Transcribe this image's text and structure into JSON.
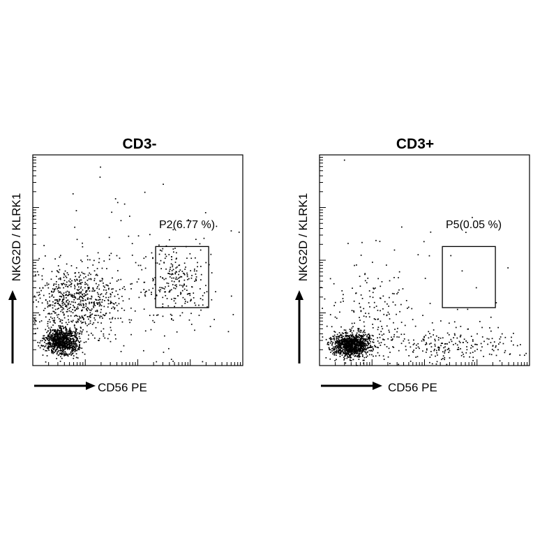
{
  "chart_data": [
    {
      "type": "scatter",
      "title": "CD3-",
      "xlabel": "CD56 PE",
      "ylabel": "NKG2D / KLRK1",
      "axis_scale": "log",
      "xlim": [
        0,
        4
      ],
      "ylim": [
        0,
        4
      ],
      "gate": {
        "label": "P2(6.77 %)",
        "x_range": [
          2.34,
          3.35
        ],
        "y_range": [
          1.1,
          2.26
        ]
      },
      "colors": {
        "points": "#000000",
        "axes": "#000000",
        "gate": "#000000"
      },
      "populations": [
        {
          "name": "",
          "x": 0.55,
          "y": 0.47,
          "sx": 0.16,
          "sy": 0.13,
          "n": 900
        },
        {
          "name": "",
          "x": 0.82,
          "y": 1.28,
          "sx": 0.42,
          "sy": 0.35,
          "n": 650
        },
        {
          "name": "",
          "x": 2.75,
          "y": 1.65,
          "sx": 0.32,
          "sy": 0.38,
          "n": 220
        },
        {
          "name": "",
          "x": 1.9,
          "y": 1.5,
          "sx": 0.9,
          "sy": 0.9,
          "n": 140
        }
      ]
    },
    {
      "type": "scatter",
      "title": "CD3+",
      "xlabel": "CD56 PE",
      "ylabel": "NKG2D / KLRK1",
      "axis_scale": "log",
      "xlim": [
        0,
        4
      ],
      "ylim": [
        0,
        4
      ],
      "gate": {
        "label": "P5(0.05 %)",
        "x_range": [
          2.34,
          3.35
        ],
        "y_range": [
          1.1,
          2.26
        ]
      },
      "colors": {
        "points": "#000000",
        "axes": "#000000",
        "gate": "#000000"
      },
      "populations": [
        {
          "name": "",
          "x": 0.6,
          "y": 0.4,
          "sx": 0.18,
          "sy": 0.11,
          "n": 1100
        },
        {
          "name": "",
          "x": 0.95,
          "y": 0.8,
          "sx": 0.45,
          "sy": 0.55,
          "n": 200
        },
        {
          "name": "",
          "x": 2.6,
          "y": 0.42,
          "sx": 0.75,
          "sy": 0.17,
          "n": 230
        },
        {
          "name": "",
          "x": 2.2,
          "y": 1.8,
          "sx": 1.0,
          "sy": 1.0,
          "n": 25
        }
      ]
    }
  ]
}
